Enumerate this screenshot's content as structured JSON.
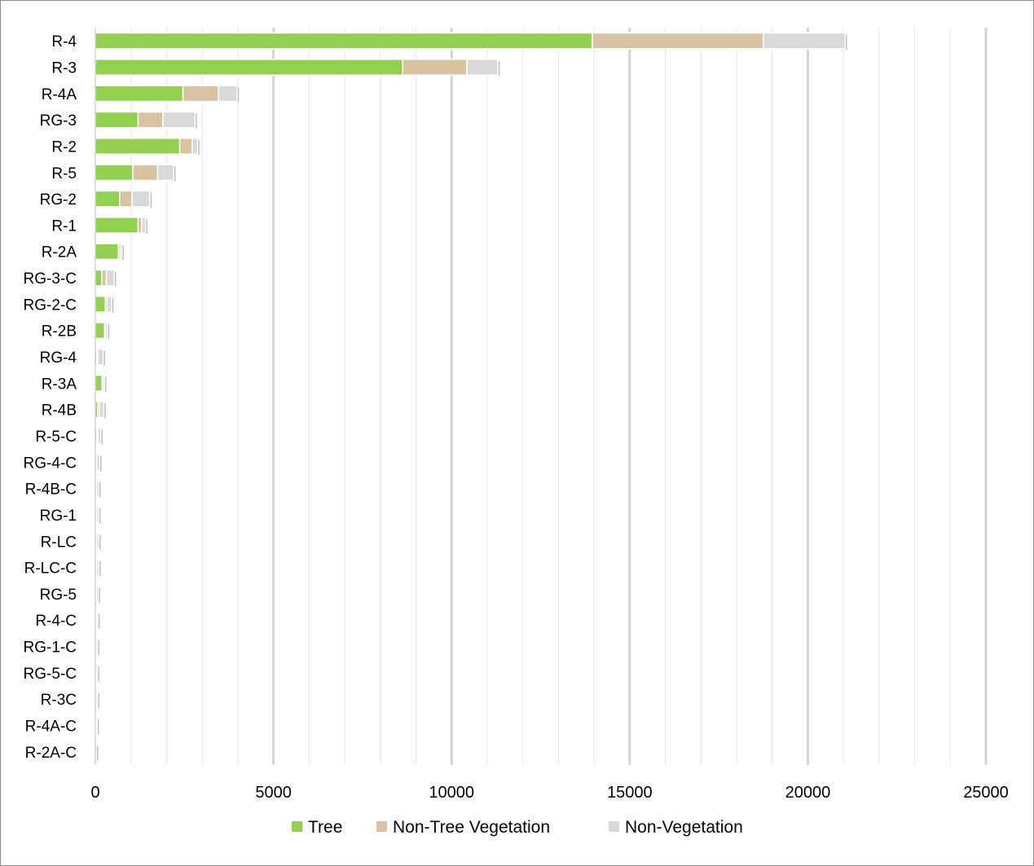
{
  "chart_data": {
    "type": "bar",
    "orientation": "horizontal",
    "stacked": true,
    "categories": [
      "R-4",
      "R-3",
      "R-4A",
      "RG-3",
      "R-2",
      "R-5",
      "RG-2",
      "R-1",
      "R-2A",
      "RG-3-C",
      "RG-2-C",
      "R-2B",
      "RG-4",
      "R-3A",
      "R-4B",
      "R-5-C",
      "RG-4-C",
      "R-4B-C",
      "RG-1",
      "R-LC",
      "R-LC-C",
      "RG-5",
      "R-4-C",
      "RG-1-C",
      "RG-5-C",
      "R-3C",
      "R-4A-C",
      "R-2A-C"
    ],
    "series": [
      {
        "name": "Tree",
        "color": "#92d050",
        "values": [
          13950,
          8630,
          2460,
          1200,
          2370,
          1050,
          680,
          1200,
          650,
          180,
          280,
          260,
          40,
          190,
          70,
          40,
          20,
          20,
          20,
          20,
          20,
          20,
          10,
          10,
          10,
          10,
          10,
          10
        ]
      },
      {
        "name": "Non-Tree Vegetation",
        "color": "#d9c3a0",
        "values": [
          4800,
          1800,
          1000,
          700,
          350,
          700,
          350,
          100,
          50,
          130,
          50,
          20,
          30,
          20,
          50,
          30,
          20,
          20,
          20,
          20,
          20,
          10,
          20,
          10,
          10,
          10,
          10,
          0
        ]
      },
      {
        "name": "Non-Vegetation",
        "color": "#d9d9d9",
        "values": [
          2300,
          870,
          520,
          900,
          150,
          450,
          500,
          110,
          50,
          220,
          130,
          60,
          150,
          50,
          120,
          80,
          80,
          60,
          60,
          60,
          60,
          50,
          40,
          40,
          40,
          40,
          30,
          20
        ]
      }
    ],
    "xlim": [
      0,
      25000
    ],
    "x_ticks": [
      "0",
      "5000",
      "10000",
      "15000",
      "20000",
      "25000"
    ],
    "xlabel": "",
    "ylabel": "",
    "title": "",
    "grid": {
      "major": true,
      "minor": true
    },
    "legend": {
      "placement": "bottom"
    }
  }
}
